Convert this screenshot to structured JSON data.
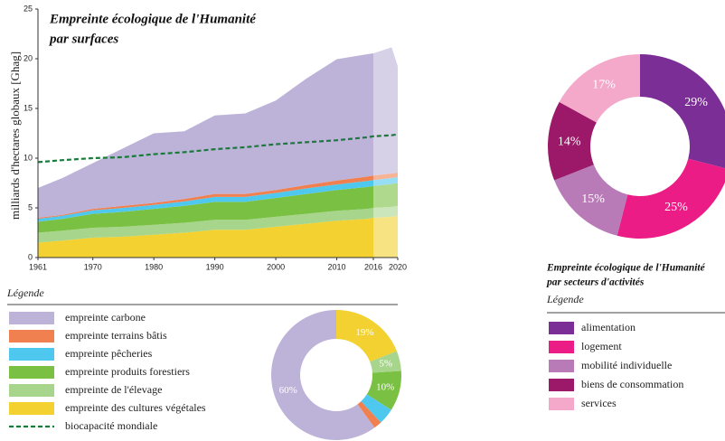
{
  "chart_data": [
    {
      "type": "area",
      "title": [
        "Empreinte écologique de l'Humanité",
        "par surfaces"
      ],
      "ylabel": "milliards d'hectares globaux [Ghag]",
      "legend_title": "Légende",
      "x": [
        1961,
        1965,
        1970,
        1975,
        1980,
        1985,
        1990,
        1995,
        2000,
        2005,
        2010,
        2015,
        2016,
        2019,
        2020
      ],
      "xlim": [
        1961,
        2020
      ],
      "xticks": [
        1961,
        1970,
        1980,
        1990,
        2000,
        2010,
        2016,
        2020
      ],
      "ylim": [
        0,
        25
      ],
      "yticks": [
        0,
        5,
        10,
        15,
        20,
        25
      ],
      "shaded_xrange": [
        2016,
        2020
      ],
      "series": [
        {
          "name": "empreinte carbone",
          "color": "#bdb3d9",
          "values": [
            3.0,
            3.7,
            4.6,
            5.8,
            7.0,
            6.8,
            7.9,
            8.1,
            9.0,
            10.7,
            12.2,
            12.3,
            12.3,
            12.7,
            10.7
          ]
        },
        {
          "name": "empreinte terrains bâtis",
          "color": "#f08050",
          "values": [
            0.1,
            0.1,
            0.15,
            0.2,
            0.2,
            0.25,
            0.3,
            0.3,
            0.3,
            0.35,
            0.4,
            0.45,
            0.45,
            0.45,
            0.45
          ]
        },
        {
          "name": "empreinte pêcheries",
          "color": "#4fc8ef",
          "values": [
            0.3,
            0.3,
            0.35,
            0.4,
            0.4,
            0.45,
            0.5,
            0.5,
            0.5,
            0.55,
            0.55,
            0.6,
            0.6,
            0.6,
            0.6
          ]
        },
        {
          "name": "empreinte produits forestiers",
          "color": "#7ac143",
          "values": [
            1.1,
            1.2,
            1.4,
            1.5,
            1.6,
            1.7,
            1.8,
            1.8,
            1.9,
            2.0,
            2.1,
            2.2,
            2.2,
            2.3,
            2.3
          ]
        },
        {
          "name": "empreinte de l'élevage",
          "color": "#a8d58c",
          "values": [
            1.0,
            1.0,
            1.0,
            1.0,
            1.0,
            1.0,
            1.0,
            1.0,
            1.0,
            1.0,
            1.0,
            1.0,
            1.0,
            1.0,
            1.0
          ]
        },
        {
          "name": "empreinte des cultures végétales",
          "color": "#f2d130",
          "values": [
            1.5,
            1.7,
            2.0,
            2.1,
            2.3,
            2.5,
            2.8,
            2.8,
            3.1,
            3.4,
            3.7,
            3.9,
            4.0,
            4.1,
            4.2
          ]
        },
        {
          "name": "biocapacité mondiale",
          "color": "#1a7a3c",
          "kind": "line",
          "dashed": true,
          "values": [
            9.6,
            9.8,
            10.0,
            10.1,
            10.4,
            10.6,
            10.9,
            11.1,
            11.4,
            11.6,
            11.8,
            12.1,
            12.2,
            12.3,
            12.4
          ]
        }
      ]
    },
    {
      "type": "donut",
      "values": [
        19,
        5,
        10,
        4,
        2,
        60
      ],
      "value_labels": [
        "19%",
        "5%",
        "10%",
        null,
        null,
        "60%"
      ],
      "colors": [
        "#f2d130",
        "#a8d58c",
        "#7ac143",
        "#4fc8ef",
        "#f08050",
        "#bdb3d9"
      ]
    },
    {
      "type": "donut",
      "title": [
        "Empreinte écologique de l'Humanité",
        "par secteurs d'activités"
      ],
      "legend_title": "Légende",
      "categories": [
        "alimentation",
        "logement",
        "mobilité individuelle",
        "biens de consommation",
        "services"
      ],
      "values": [
        29,
        25,
        15,
        14,
        17
      ],
      "value_labels": [
        "29%",
        "25%",
        "15%",
        "14%",
        "17%"
      ],
      "colors": [
        "#7a2e96",
        "#ec1c86",
        "#b87bb7",
        "#9b1968",
        "#f4a9cb"
      ]
    }
  ]
}
